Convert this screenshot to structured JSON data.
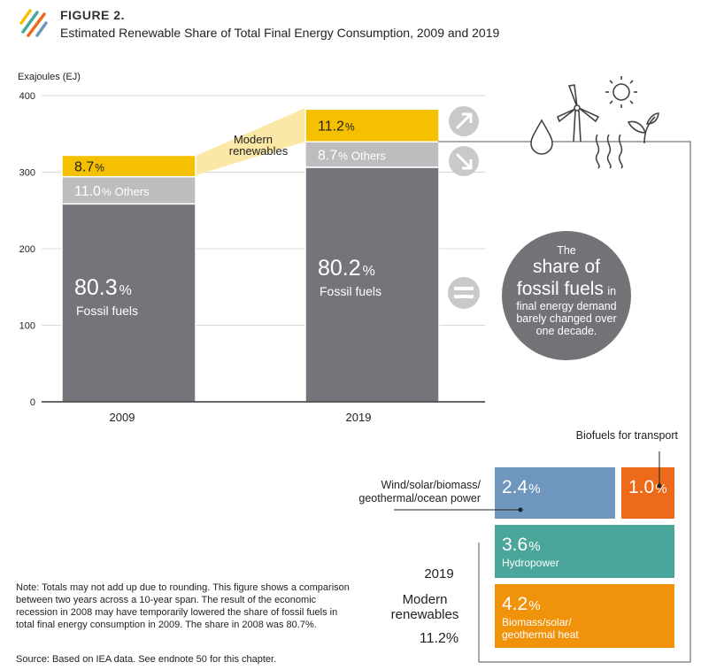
{
  "figure": {
    "label": "FIGURE 2.",
    "title": "Estimated Renewable Share of Total Final Energy Consumption, 2009 and 2019"
  },
  "chart_data": {
    "type": "bar",
    "stacked": true,
    "ylabel": "Exajoules (EJ)",
    "ylim": [
      0,
      400
    ],
    "yticks": [
      0,
      100,
      200,
      300,
      400
    ],
    "categories": [
      "2009",
      "2019"
    ],
    "totals_ej": [
      322,
      382
    ],
    "series": [
      {
        "name": "Fossil fuels",
        "values_pct": [
          80.3,
          80.2
        ],
        "labels": [
          "80.3%",
          "80.2%"
        ],
        "color": "#77737a"
      },
      {
        "name": "Others",
        "values_pct": [
          11.0,
          8.7
        ],
        "labels": [
          "11.0% Others",
          "8.7% Others"
        ],
        "color": "#bebcbf"
      },
      {
        "name": "Modern renewables",
        "values_pct": [
          8.7,
          11.2
        ],
        "labels": [
          "8.7%",
          "11.2%"
        ],
        "color": "#f5c000"
      }
    ],
    "annotations": {
      "modern_renewables": "Modern renewables"
    },
    "breakdown_2019": {
      "year": "2019",
      "label": "Modern renewables",
      "total": "11.2%",
      "items": [
        {
          "name": "Wind/solar/biomass/geothermal/ocean power",
          "value": "2.4%",
          "color": "#6f97be"
        },
        {
          "name": "Biofuels for transport",
          "value": "1.0%",
          "color": "#ed6a1a"
        },
        {
          "name": "Hydropower",
          "value": "3.6%",
          "color": "#4aa69a"
        },
        {
          "name": "Biomass/solar/geothermal heat",
          "value": "4.2%",
          "color": "#f0920a"
        }
      ]
    }
  },
  "circle": {
    "line1": "The",
    "line2": "share of",
    "line3a": "fossil fuels",
    "line3b": "in",
    "line4": "final energy demand",
    "line5": "barely changed over",
    "line6": "one decade."
  },
  "callouts": {
    "biofuels": "Biofuels for transport",
    "wind_line1": "Wind/solar/biomass/",
    "wind_line2": "geothermal/ocean power",
    "hydro": "Hydropower",
    "heat_line1": "Biomass/solar/",
    "heat_line2": "geothermal heat"
  },
  "note": "Note: Totals may not add up due to rounding. This figure shows a comparison between two years across a 10-year span. The result of the economic recession in 2008 may have temporarily lowered the share of fossil fuels in total final energy consumption in 2009. The share in 2008 was 80.7%.",
  "source": "Source: Based on IEA data. See endnote 50 for this chapter.",
  "colors": {
    "fossil": "#77737a",
    "others": "#bebcbf",
    "renewables": "#f5c000",
    "band": "#fbe7a6",
    "circle": "#757277",
    "arrow_circle": "#c9c8cb"
  }
}
